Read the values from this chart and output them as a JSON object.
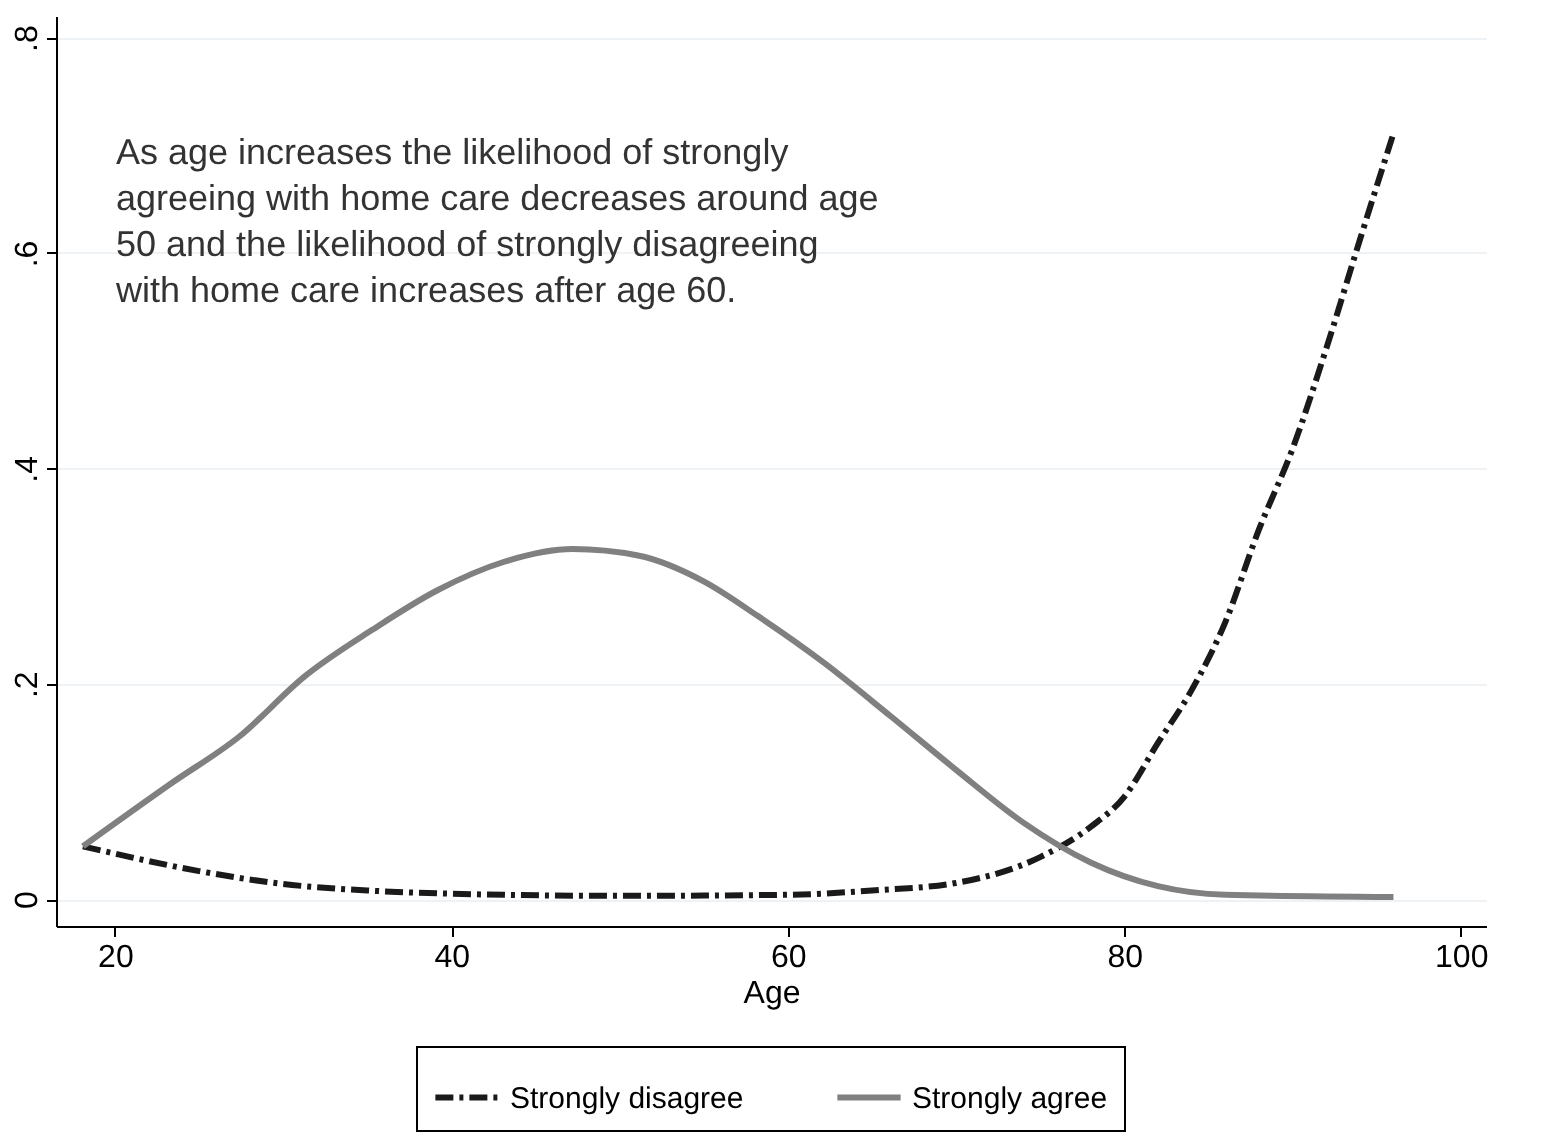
{
  "chart_data": {
    "type": "line",
    "xlabel": "Age",
    "annotations": [
      "As age increases the likelihood of strongly agreeing with home care decreases around age 50 and the likelihood of strongly disagreeing with home care increases after age 60."
    ],
    "series": [
      {
        "name": "Strongly disagree",
        "color": "#1a1a1a",
        "line_style": "dashed",
        "x": [
          18.1,
          25,
          30,
          35,
          40,
          50,
          60,
          65,
          70,
          75,
          78,
          80,
          82,
          84,
          86,
          88,
          90,
          92,
          94,
          96
        ],
        "values": [
          0.049,
          0.026,
          0.014,
          0.008,
          0.005,
          0.003,
          0.004,
          0.008,
          0.015,
          0.039,
          0.067,
          0.095,
          0.145,
          0.194,
          0.257,
          0.343,
          0.418,
          0.511,
          0.612,
          0.711
        ]
      },
      {
        "name": "Strongly agree",
        "color": "#808080",
        "line_style": "solid",
        "x": [
          18.1,
          23.4,
          27.4,
          31.3,
          35.3,
          39.2,
          43.1,
          47.2,
          51.1,
          55,
          58.2,
          62.1,
          66.1,
          70,
          74,
          78,
          82,
          86,
          96
        ],
        "values": [
          0.049,
          0.108,
          0.151,
          0.207,
          0.25,
          0.287,
          0.313,
          0.325,
          0.319,
          0.295,
          0.263,
          0.22,
          0.17,
          0.12,
          0.071,
          0.034,
          0.012,
          0.004,
          0.002
        ]
      }
    ],
    "xlim": [
      16.5,
      101.5
    ],
    "xticks": [
      20,
      40,
      60,
      80,
      100
    ],
    "ylim": [
      -0.025,
      0.82
    ],
    "yticks": [
      {
        "value": 0,
        "label": "0"
      },
      {
        "value": 0.2,
        "label": ".2"
      },
      {
        "value": 0.4,
        "label": ".4"
      },
      {
        "value": 0.6,
        "label": ".6"
      },
      {
        "value": 0.8,
        "label": ".8"
      }
    ],
    "grid": "y",
    "legend": "bottom",
    "marker": "none"
  }
}
